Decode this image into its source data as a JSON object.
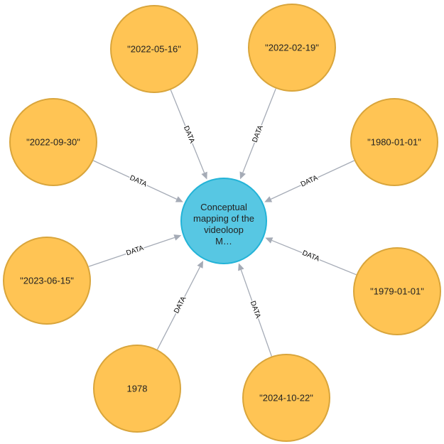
{
  "colors": {
    "leaf_fill": "#ffc454",
    "leaf_stroke": "#d9a53b",
    "center_fill": "#57c7e3",
    "center_stroke": "#23b3d7",
    "edge": "#a5abb6"
  },
  "center_node": {
    "label_lines": [
      "Conceptual",
      "mapping of the",
      "videoloop",
      "M…"
    ]
  },
  "nodes": [
    {
      "label": "\"2022-05-16\""
    },
    {
      "label": "\"2022-02-19\""
    },
    {
      "label": "\"2022-09-30\""
    },
    {
      "label": "\"1980-01-01\""
    },
    {
      "label": "\"2023-06-15\""
    },
    {
      "label": "\"1979-01-01\""
    },
    {
      "label": "1978"
    },
    {
      "label": "\"2024-10-22\""
    }
  ],
  "edges": [
    {
      "from": 0,
      "label": "DATA"
    },
    {
      "from": 1,
      "label": "DATA"
    },
    {
      "from": 2,
      "label": "DATA"
    },
    {
      "from": 3,
      "label": "DATA"
    },
    {
      "from": 4,
      "label": "DATA"
    },
    {
      "from": 5,
      "label": "DATA"
    },
    {
      "from": 6,
      "label": "DATA"
    },
    {
      "from": 7,
      "label": "DATA"
    }
  ]
}
